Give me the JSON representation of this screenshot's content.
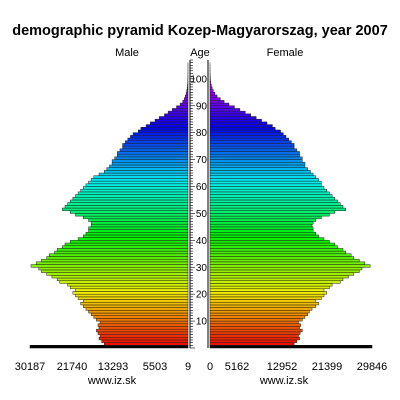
{
  "chart_data": {
    "type": "bar",
    "title": "demographic pyramid Kozep-Magyarorszag, year 2007",
    "left_label": "Male",
    "center_label": "Age",
    "right_label": "Female",
    "age_ticks": [
      10,
      20,
      30,
      40,
      50,
      60,
      70,
      80,
      90,
      100
    ],
    "age_range": [
      0,
      107
    ],
    "male_axis_ticks": [
      "30187",
      "21740",
      "13293",
      "5503",
      "9"
    ],
    "female_axis_ticks": [
      "0",
      "5162",
      "12952",
      "21399",
      "29846"
    ],
    "male_xlim": [
      0,
      30187
    ],
    "female_xlim": [
      0,
      29846
    ],
    "credit_left": "www.iz.sk",
    "credit_right": "www.iz.sk",
    "series": [
      {
        "name": "Male",
        "values": [
          30187,
          16000,
          16500,
          17000,
          16800,
          17200,
          17500,
          17000,
          17200,
          16800,
          17500,
          18000,
          18500,
          19000,
          19500,
          20000,
          20500,
          20000,
          21000,
          21500,
          22000,
          21500,
          22500,
          23000,
          24500,
          25000,
          26000,
          27000,
          28000,
          28500,
          30000,
          29000,
          28000,
          27000,
          26500,
          25500,
          25000,
          24000,
          23500,
          22500,
          21000,
          20000,
          19500,
          19000,
          19000,
          18500,
          18500,
          19000,
          20000,
          21500,
          22500,
          24000,
          23500,
          23000,
          22500,
          22000,
          21500,
          21000,
          20500,
          20000,
          19500,
          19000,
          18500,
          18000,
          17000,
          16000,
          15500,
          15000,
          14500,
          14500,
          14000,
          13500,
          13500,
          13000,
          12500,
          12500,
          12000,
          11500,
          11000,
          10500,
          9500,
          9000,
          8000,
          7200,
          6300,
          5500,
          4500,
          3800,
          3000,
          2200,
          1500,
          1000,
          700,
          500,
          350,
          250,
          150,
          100,
          60,
          40,
          25,
          15,
          8,
          4,
          2,
          1,
          0
        ]
      },
      {
        "name": "Female",
        "values": [
          29846,
          15500,
          16000,
          16500,
          16300,
          16600,
          17000,
          16500,
          16700,
          16300,
          17000,
          17500,
          18000,
          18300,
          18800,
          19500,
          20000,
          19500,
          20500,
          21000,
          21500,
          21000,
          22000,
          22500,
          24000,
          24500,
          25500,
          26500,
          27500,
          28000,
          29500,
          28500,
          27500,
          26500,
          26000,
          25000,
          24500,
          23500,
          23000,
          22000,
          21000,
          20000,
          19500,
          19000,
          19000,
          18800,
          19000,
          19500,
          20500,
          22000,
          23000,
          25000,
          24500,
          24000,
          23500,
          23000,
          22500,
          22000,
          21500,
          21000,
          20500,
          20500,
          20000,
          19500,
          19000,
          18500,
          18000,
          17500,
          17500,
          17000,
          17000,
          16500,
          16500,
          16000,
          15500,
          15500,
          15000,
          14500,
          14000,
          13500,
          13000,
          12000,
          11500,
          10500,
          9500,
          8500,
          7500,
          6500,
          5500,
          4500,
          3500,
          2600,
          1900,
          1300,
          900,
          600,
          400,
          250,
          150,
          90,
          55,
          30,
          16,
          8,
          4,
          2,
          0
        ]
      }
    ]
  }
}
